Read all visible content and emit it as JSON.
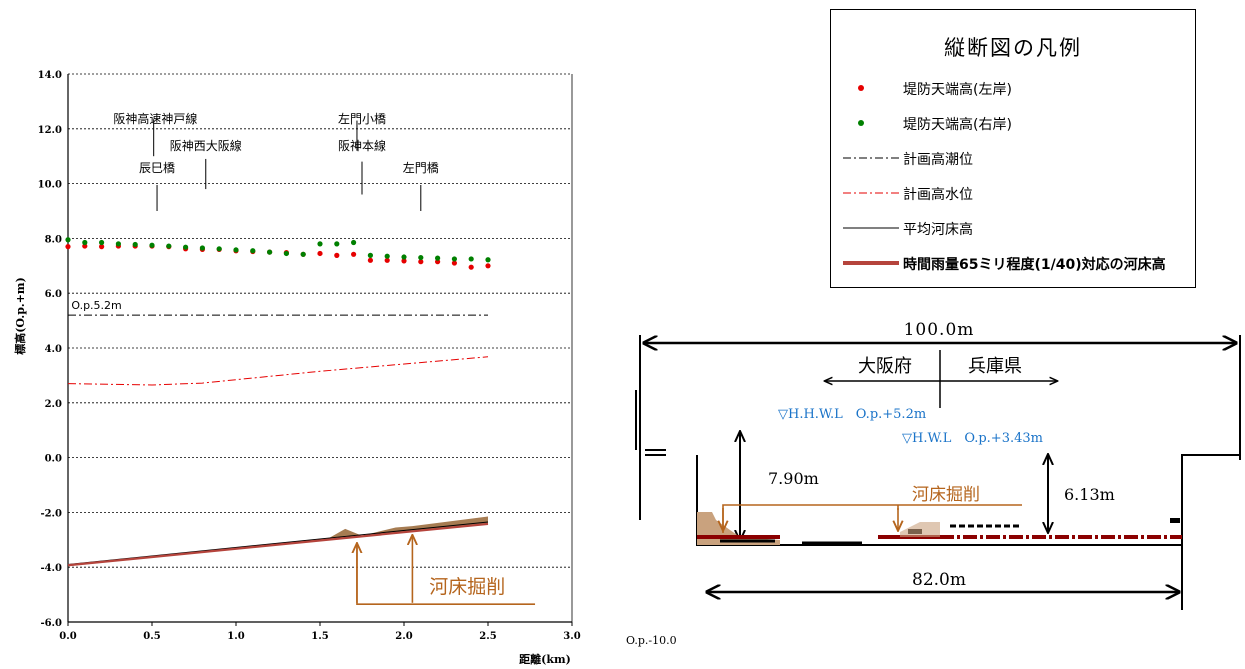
{
  "chart_data": {
    "type": "scatter",
    "xlabel": "距離(km)",
    "ylabel": "標高(O.p.+m)",
    "xlim": [
      0.0,
      3.0
    ],
    "ylim": [
      -6.0,
      14.0
    ],
    "x_ticks": [
      "0.0",
      "0.5",
      "1.0",
      "1.5",
      "2.0",
      "2.5",
      "3.0"
    ],
    "y_ticks": [
      "14.0",
      "12.0",
      "10.0",
      "8.0",
      "6.0",
      "4.0",
      "2.0",
      "0.0",
      "-2.0",
      "-4.0",
      "-6.0"
    ],
    "grid": true,
    "series": [
      {
        "name": "堤防天端高(左岸)",
        "style": "dots",
        "color": "#e60000",
        "x": [
          0.0,
          0.1,
          0.2,
          0.3,
          0.4,
          0.5,
          0.6,
          0.7,
          0.8,
          0.9,
          1.0,
          1.1,
          1.2,
          1.3,
          1.4,
          1.5,
          1.6,
          1.7,
          1.8,
          1.9,
          2.0,
          2.1,
          2.2,
          2.3,
          2.4,
          2.5
        ],
        "y": [
          7.7,
          7.72,
          7.7,
          7.72,
          7.72,
          7.72,
          7.7,
          7.62,
          7.6,
          7.6,
          7.55,
          7.52,
          7.5,
          7.48,
          7.42,
          7.45,
          7.38,
          7.42,
          7.2,
          7.2,
          7.18,
          7.15,
          7.15,
          7.1,
          6.95,
          7.0
        ]
      },
      {
        "name": "堤防天端高(右岸)",
        "style": "dots",
        "color": "#008000",
        "x": [
          0.0,
          0.1,
          0.2,
          0.3,
          0.4,
          0.5,
          0.6,
          0.7,
          0.8,
          0.9,
          1.0,
          1.1,
          1.2,
          1.3,
          1.4,
          1.5,
          1.6,
          1.7,
          1.8,
          1.9,
          2.0,
          2.1,
          2.2,
          2.3,
          2.4,
          2.5
        ],
        "y": [
          7.95,
          7.85,
          7.85,
          7.8,
          7.78,
          7.75,
          7.72,
          7.68,
          7.65,
          7.62,
          7.58,
          7.55,
          7.5,
          7.45,
          7.42,
          7.8,
          7.8,
          7.85,
          7.38,
          7.35,
          7.32,
          7.3,
          7.28,
          7.25,
          7.25,
          7.22
        ]
      },
      {
        "name": "計画高潮位",
        "style": "dashdot",
        "color": "#000000",
        "x": [
          0.0,
          2.5
        ],
        "y": [
          5.2,
          5.2
        ]
      },
      {
        "name": "計画高水位",
        "style": "dashdot",
        "color": "#e60000",
        "x": [
          0.0,
          0.5,
          0.8,
          1.5,
          2.5
        ],
        "y": [
          2.7,
          2.65,
          2.72,
          3.15,
          3.68
        ]
      },
      {
        "name": "平均河床高",
        "style": "solid",
        "color": "#000000",
        "x": [
          0.0,
          2.5
        ],
        "y": [
          -3.9,
          -2.35
        ]
      },
      {
        "name": "時間雨量65ミリ程度(1/40)対応の河床高",
        "style": "thick",
        "color": "#b5443c",
        "x": [
          0.0,
          2.5
        ],
        "y": [
          -3.93,
          -2.42
        ]
      }
    ],
    "excavation_fill_color": "#a67c52",
    "excavation_top": {
      "x": [
        0.0,
        1.55,
        1.65,
        1.75,
        1.95,
        2.05,
        2.5
      ],
      "y": [
        -3.9,
        -2.95,
        -2.6,
        -2.85,
        -2.55,
        -2.5,
        -2.15
      ]
    },
    "annotations": [
      {
        "text": "O.p.5.2m",
        "x": 0.02,
        "y": 5.2
      },
      {
        "text": "阪神高速神戸線",
        "x": 0.52,
        "y": 12.0
      },
      {
        "text": "辰巳橋",
        "x": 0.53,
        "y": 10.2
      },
      {
        "text": "阪神西大阪線",
        "x": 0.82,
        "y": 11.0
      },
      {
        "text": "左門小橋",
        "x": 1.75,
        "y": 12.0
      },
      {
        "text": "阪神本線",
        "x": 1.75,
        "y": 11.0
      },
      {
        "text": "左門橋",
        "x": 2.1,
        "y": 10.2
      }
    ],
    "excavation_label": "河床掘削"
  },
  "legend": {
    "title": "縦断図の凡例",
    "items": [
      {
        "label": "堤防天端高(左岸)",
        "symbol": "dot",
        "color": "#e60000"
      },
      {
        "label": "堤防天端高(右岸)",
        "symbol": "dot",
        "color": "#008000"
      },
      {
        "label": "計画高潮位",
        "symbol": "dashdot",
        "color": "#000000"
      },
      {
        "label": "計画高水位",
        "symbol": "dashdot",
        "color": "#e60000"
      },
      {
        "label": "平均河床高",
        "symbol": "line",
        "color": "#000000"
      },
      {
        "label": "時間雨量65ミリ程度(1/40)対応の河床高",
        "symbol": "thick",
        "color": "#b5443c"
      }
    ]
  },
  "cross_section": {
    "width_top": "100.0m",
    "left_pref": "大阪府",
    "right_pref": "兵庫県",
    "hhwl": "▽H.H.W.L　O.p.+5.2m",
    "hwl": "▽H.W.L　O.p.+3.43m",
    "depth_left": "7.90m",
    "depth_right": "6.13m",
    "excavation_label": "河床掘削",
    "width_bottom": "82.0m",
    "datum": "O.p.-10.0",
    "blue_color": "#1a73c8",
    "brown_color": "#b5651d",
    "bed_color": "#8b0000"
  }
}
